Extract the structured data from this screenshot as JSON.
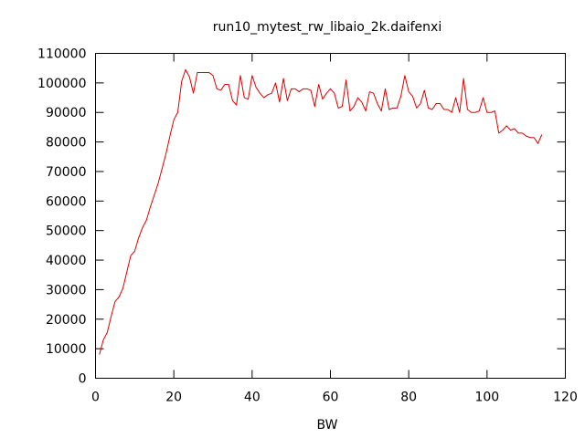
{
  "chart_data": {
    "type": "line",
    "title": "run10_mytest_rw_libaio_2k.daifenxi",
    "xlabel": "BW",
    "ylabel": "",
    "xlim": [
      0,
      120
    ],
    "ylim": [
      0,
      110000
    ],
    "xticks": [
      0,
      20,
      40,
      60,
      80,
      100,
      120
    ],
    "yticks": [
      0,
      10000,
      20000,
      30000,
      40000,
      50000,
      60000,
      70000,
      80000,
      90000,
      100000,
      110000
    ],
    "grid": false,
    "series": [
      {
        "name": "",
        "color": "#dd0000",
        "x": [
          1,
          2,
          3,
          4,
          5,
          6,
          7,
          8,
          9,
          10,
          11,
          12,
          13,
          14,
          15,
          16,
          17,
          18,
          19,
          20,
          21,
          22,
          23,
          24,
          25,
          26,
          27,
          28,
          29,
          30,
          31,
          32,
          33,
          34,
          35,
          36,
          37,
          38,
          39,
          40,
          41,
          42,
          43,
          44,
          45,
          46,
          47,
          48,
          49,
          50,
          51,
          52,
          53,
          54,
          55,
          56,
          57,
          58,
          59,
          60,
          61,
          62,
          63,
          64,
          65,
          66,
          67,
          68,
          69,
          70,
          71,
          72,
          73,
          74,
          75,
          76,
          77,
          78,
          79,
          80,
          81,
          82,
          83,
          84,
          85,
          86,
          87,
          88,
          89,
          90,
          91,
          92,
          93,
          94,
          95,
          96,
          97,
          98,
          99,
          100,
          101,
          102,
          103,
          104,
          105,
          106,
          107,
          108,
          109,
          110,
          111,
          112,
          113,
          114
        ],
        "y": [
          8000,
          13000,
          15500,
          21000,
          26000,
          27500,
          30500,
          36000,
          41500,
          43000,
          47500,
          51000,
          53500,
          58000,
          62000,
          66000,
          71000,
          76000,
          82000,
          87500,
          90000,
          100500,
          104500,
          102000,
          96500,
          103500,
          103500,
          103500,
          103500,
          102500,
          98000,
          97500,
          99500,
          99500,
          94000,
          92500,
          102500,
          95000,
          94500,
          102500,
          98500,
          96500,
          95000,
          96000,
          96500,
          100000,
          93500,
          101500,
          94000,
          98000,
          98000,
          97000,
          98000,
          98000,
          97500,
          92000,
          99500,
          94500,
          96500,
          98000,
          96500,
          91500,
          92000,
          101000,
          90500,
          92000,
          95000,
          93500,
          90500,
          97000,
          96500,
          93000,
          90500,
          98000,
          91000,
          91500,
          91500,
          95500,
          102500,
          97000,
          95500,
          91500,
          93000,
          97500,
          91500,
          91000,
          93000,
          93000,
          91000,
          91000,
          90000,
          95000,
          90000,
          101500,
          91000,
          90000,
          90000,
          90500,
          95000,
          90000,
          90000,
          90500,
          83000,
          84000,
          85500,
          84000,
          84500,
          83000,
          83000,
          82000,
          81500,
          81500,
          79500,
          82500
        ]
      }
    ]
  }
}
